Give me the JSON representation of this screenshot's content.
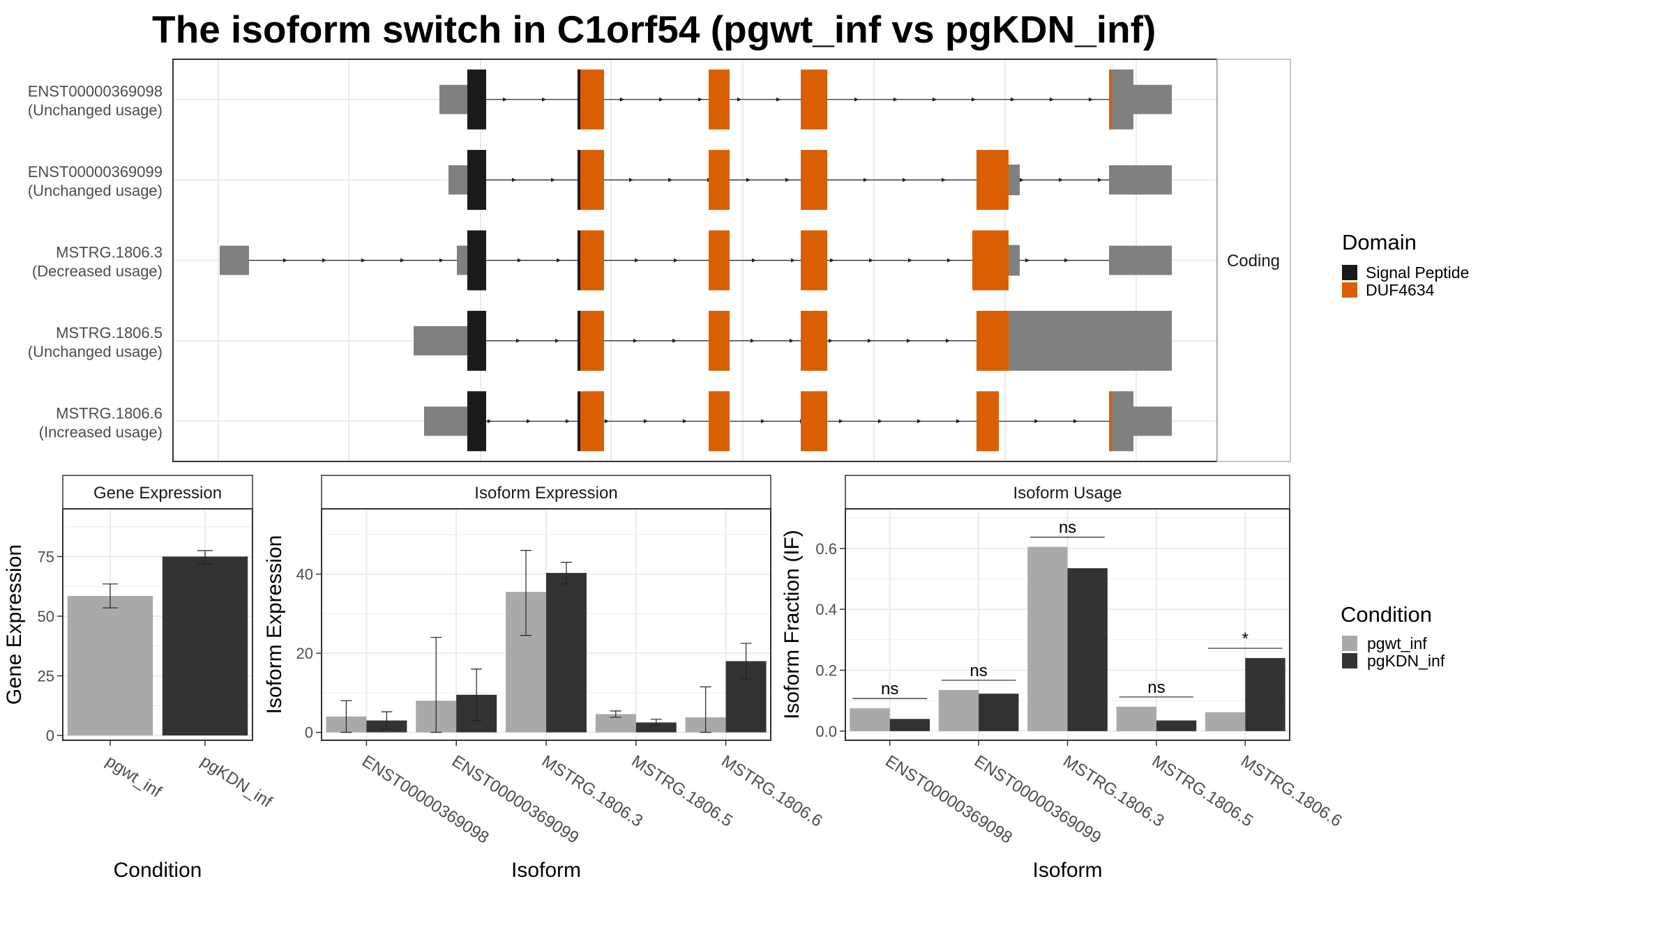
{
  "title": "The isoform switch in C1orf54 (pgwt_inf vs pgKDN_inf)",
  "colors": {
    "pgwt_inf": "#a9a9a9",
    "pgKDN_inf": "#333333",
    "utr": "#808080",
    "signal_peptide": "#1a1a1a",
    "duf4634": "#d95f02"
  },
  "structure_panel": {
    "strip_label": "Coding",
    "legend_title": "Domain",
    "legend_items": [
      {
        "label": "Signal Peptide",
        "color": "#1a1a1a"
      },
      {
        "label": "DUF4634",
        "color": "#d95f02"
      }
    ],
    "isoforms": [
      {
        "id": "ENST00000369098",
        "usage": "(Unchanged usage)",
        "intron_span": [
          630,
          1600
        ],
        "segments": [
          {
            "s": 630,
            "e": 670,
            "kind": "utr"
          },
          {
            "s": 670,
            "e": 697,
            "kind": "sp"
          },
          {
            "s": 828,
            "e": 832,
            "kind": "sp"
          },
          {
            "s": 832,
            "e": 866,
            "kind": "duf"
          },
          {
            "s": 1016,
            "e": 1046,
            "kind": "duf"
          },
          {
            "s": 1148,
            "e": 1186,
            "kind": "duf"
          },
          {
            "s": 1590,
            "e": 1594,
            "kind": "duf"
          },
          {
            "s": 1594,
            "e": 1625,
            "kind": "utr"
          },
          {
            "s": 1625,
            "e": 1680,
            "kind": "utr_thin"
          }
        ]
      },
      {
        "id": "ENST00000369099",
        "usage": "(Unchanged usage)",
        "intron_span": [
          643,
          1590
        ],
        "segments": [
          {
            "s": 643,
            "e": 670,
            "kind": "utr"
          },
          {
            "s": 670,
            "e": 697,
            "kind": "sp"
          },
          {
            "s": 828,
            "e": 832,
            "kind": "sp"
          },
          {
            "s": 832,
            "e": 866,
            "kind": "duf"
          },
          {
            "s": 1016,
            "e": 1046,
            "kind": "duf"
          },
          {
            "s": 1148,
            "e": 1186,
            "kind": "duf"
          },
          {
            "s": 1400,
            "e": 1446,
            "kind": "duf"
          },
          {
            "s": 1446,
            "e": 1462,
            "kind": "utr_thin"
          },
          {
            "s": 1590,
            "e": 1680,
            "kind": "utr"
          }
        ]
      },
      {
        "id": "MSTRG.1806.3",
        "usage": "(Decreased usage)",
        "intron_span": [
          315,
          1590
        ],
        "segments": [
          {
            "s": 315,
            "e": 357,
            "kind": "utr"
          },
          {
            "s": 655,
            "e": 670,
            "kind": "utr"
          },
          {
            "s": 670,
            "e": 697,
            "kind": "sp"
          },
          {
            "s": 828,
            "e": 832,
            "kind": "sp"
          },
          {
            "s": 832,
            "e": 866,
            "kind": "duf"
          },
          {
            "s": 1016,
            "e": 1046,
            "kind": "duf"
          },
          {
            "s": 1148,
            "e": 1186,
            "kind": "duf"
          },
          {
            "s": 1394,
            "e": 1446,
            "kind": "duf"
          },
          {
            "s": 1446,
            "e": 1462,
            "kind": "utr_thin"
          },
          {
            "s": 1590,
            "e": 1680,
            "kind": "utr"
          }
        ]
      },
      {
        "id": "MSTRG.1806.5",
        "usage": "(Unchanged usage)",
        "intron_span": [
          593,
          1400
        ],
        "segments": [
          {
            "s": 593,
            "e": 670,
            "kind": "utr"
          },
          {
            "s": 670,
            "e": 697,
            "kind": "sp"
          },
          {
            "s": 828,
            "e": 832,
            "kind": "sp"
          },
          {
            "s": 832,
            "e": 866,
            "kind": "duf"
          },
          {
            "s": 1016,
            "e": 1046,
            "kind": "duf"
          },
          {
            "s": 1148,
            "e": 1186,
            "kind": "duf"
          },
          {
            "s": 1400,
            "e": 1446,
            "kind": "duf"
          },
          {
            "s": 1446,
            "e": 1680,
            "kind": "utr"
          }
        ]
      },
      {
        "id": "MSTRG.1806.6",
        "usage": "(Increased usage)",
        "intron_span": [
          608,
          1600
        ],
        "segments": [
          {
            "s": 608,
            "e": 670,
            "kind": "utr"
          },
          {
            "s": 670,
            "e": 697,
            "kind": "sp"
          },
          {
            "s": 828,
            "e": 832,
            "kind": "sp"
          },
          {
            "s": 832,
            "e": 866,
            "kind": "duf"
          },
          {
            "s": 1016,
            "e": 1046,
            "kind": "duf"
          },
          {
            "s": 1148,
            "e": 1186,
            "kind": "duf"
          },
          {
            "s": 1400,
            "e": 1432,
            "kind": "duf"
          },
          {
            "s": 1590,
            "e": 1594,
            "kind": "duf"
          },
          {
            "s": 1594,
            "e": 1625,
            "kind": "utr"
          },
          {
            "s": 1625,
            "e": 1680,
            "kind": "utr_thin"
          }
        ]
      }
    ]
  },
  "chart_data": [
    {
      "type": "bar",
      "title": "Gene Expression",
      "xlabel": "Condition",
      "ylabel": "Gene Expression",
      "ylim": [
        -2,
        95
      ],
      "yticks": [
        0,
        25,
        50,
        75
      ],
      "categories": [
        "pgwt_inf",
        "pgKDN_inf"
      ],
      "values": [
        58.5,
        75
      ],
      "errors": [
        [
          53.5,
          63.5
        ],
        [
          72,
          77.5
        ]
      ]
    },
    {
      "type": "bar",
      "title": "Isoform Expression",
      "xlabel": "Isoform",
      "ylabel": "Isoform Expression",
      "ylim": [
        -2,
        56.5
      ],
      "yticks": [
        0,
        20,
        40
      ],
      "categories": [
        "ENST00000369098",
        "ENST00000369099",
        "MSTRG.1806.3",
        "MSTRG.1806.5",
        "MSTRG.1806.6"
      ],
      "series": [
        {
          "name": "pgwt_inf",
          "values": [
            4,
            8,
            35.5,
            4.6,
            3.8
          ],
          "errors": [
            [
              0,
              8
            ],
            [
              0,
              24
            ],
            [
              24.5,
              46
            ],
            [
              3.8,
              5.4
            ],
            [
              0,
              11.5
            ]
          ]
        },
        {
          "name": "pgKDN_inf",
          "values": [
            3,
            9.5,
            40.3,
            2.5,
            18
          ],
          "errors": [
            [
              0.8,
              5.2
            ],
            [
              3,
              16
            ],
            [
              37.5,
              43
            ],
            [
              1.7,
              3.3
            ],
            [
              13.5,
              22.5
            ]
          ]
        }
      ]
    },
    {
      "type": "bar",
      "title": "Isoform Usage",
      "xlabel": "Isoform",
      "ylabel": "Isoform Fraction (IF)",
      "ylim": [
        -0.03,
        0.73
      ],
      "yticks": [
        0.0,
        0.2,
        0.4,
        0.6
      ],
      "categories": [
        "ENST00000369098",
        "ENST00000369099",
        "MSTRG.1806.3",
        "MSTRG.1806.5",
        "MSTRG.1806.6"
      ],
      "series": [
        {
          "name": "pgwt_inf",
          "values": [
            0.075,
            0.135,
            0.605,
            0.08,
            0.062
          ]
        },
        {
          "name": "pgKDN_inf",
          "values": [
            0.04,
            0.123,
            0.535,
            0.035,
            0.24
          ]
        }
      ],
      "significance": [
        "ns",
        "ns",
        "ns",
        "ns",
        "*"
      ]
    }
  ],
  "condition_legend": {
    "title": "Condition",
    "items": [
      "pgwt_inf",
      "pgKDN_inf"
    ]
  }
}
